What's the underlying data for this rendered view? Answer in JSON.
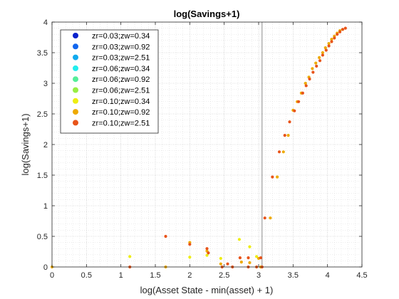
{
  "chart_data": {
    "type": "scatter",
    "title": "log(Savings+1)",
    "xlabel": "log(Asset State - min(asset) + 1)",
    "ylabel": "log(Savings+1)",
    "xlim": [
      0,
      4.5
    ],
    "ylim": [
      0,
      4
    ],
    "xticks": [
      0,
      0.5,
      1,
      1.5,
      2,
      2.5,
      3,
      3.5,
      4,
      4.5
    ],
    "xtick_labels": [
      "0",
      "0.5",
      "1",
      "1.5",
      "2",
      "2.5",
      "3",
      "3.5",
      "4",
      "4.5"
    ],
    "yticks": [
      0,
      0.5,
      1,
      1.5,
      2,
      2.5,
      3,
      3.5,
      4
    ],
    "ytick_labels": [
      "0",
      "0.5",
      "1",
      "1.5",
      "2",
      "2.5",
      "3",
      "3.5",
      "4"
    ],
    "grid": "on (major and minor, dotted)",
    "legend_position": "top-left",
    "vertical_line_x": 3.05,
    "series": [
      {
        "name": "zr=0.03;zw=0.34",
        "color": "#0a22cc",
        "points": []
      },
      {
        "name": "zr=0.03;zw=0.92",
        "color": "#1166ee",
        "points": []
      },
      {
        "name": "zr=0.03;zw=2.51",
        "color": "#11aaee",
        "points": []
      },
      {
        "name": "zr=0.06;zw=0.34",
        "color": "#22eeee",
        "points": []
      },
      {
        "name": "zr=0.06;zw=0.92",
        "color": "#55ee99",
        "points": []
      },
      {
        "name": "zr=0.06;zw=2.51",
        "color": "#99ee44",
        "points": []
      },
      {
        "name": "zr=0.10;zw=0.34",
        "color": "#eeee11",
        "points": [
          [
            1.13,
            0.17
          ],
          [
            2.72,
            0.45
          ],
          [
            2.87,
            0.33
          ],
          [
            2.97,
            0.17
          ],
          [
            2.45,
            0.14
          ],
          [
            2.25,
            0.19
          ],
          [
            2.0,
            0.16
          ]
        ]
      },
      {
        "name": "zr=0.10;zw=0.92",
        "color": "#eeaa00",
        "points": [
          [
            0.0,
            0.0
          ],
          [
            1.65,
            0.0
          ],
          [
            2.0,
            0.4
          ],
          [
            2.25,
            0.26
          ],
          [
            2.45,
            0.05
          ],
          [
            2.75,
            0.08
          ],
          [
            2.87,
            0.07
          ],
          [
            3.0,
            0.14
          ],
          [
            3.03,
            0.0
          ],
          [
            3.17,
            0.8
          ],
          [
            3.27,
            1.47
          ],
          [
            3.36,
            1.88
          ],
          [
            3.43,
            2.15
          ],
          [
            3.5,
            2.56
          ],
          [
            3.56,
            2.7
          ],
          [
            3.62,
            2.84
          ],
          [
            3.68,
            3.0
          ],
          [
            3.73,
            3.1
          ],
          [
            3.78,
            3.24
          ],
          [
            3.83,
            3.33
          ],
          [
            3.88,
            3.42
          ],
          [
            3.93,
            3.5
          ],
          [
            3.97,
            3.58
          ],
          [
            4.02,
            3.65
          ],
          [
            4.06,
            3.72
          ],
          [
            4.1,
            3.77
          ],
          [
            4.14,
            3.82
          ],
          [
            4.18,
            3.86
          ],
          [
            4.22,
            3.88
          ]
        ]
      },
      {
        "name": "zr=0.10;zw=2.51",
        "color": "#e8541a",
        "points": [
          [
            1.13,
            0.0
          ],
          [
            1.65,
            0.5
          ],
          [
            2.0,
            0.37
          ],
          [
            2.25,
            0.3
          ],
          [
            2.27,
            0.23
          ],
          [
            2.47,
            0.0
          ],
          [
            2.55,
            0.05
          ],
          [
            2.62,
            0.0
          ],
          [
            2.73,
            0.15
          ],
          [
            2.85,
            0.15
          ],
          [
            2.85,
            0.0
          ],
          [
            2.97,
            0.0
          ],
          [
            3.03,
            0.15
          ],
          [
            3.05,
            0.0
          ],
          [
            3.09,
            0.8
          ],
          [
            3.2,
            1.47
          ],
          [
            3.3,
            1.88
          ],
          [
            3.38,
            2.15
          ],
          [
            3.45,
            2.37
          ],
          [
            3.52,
            2.55
          ],
          [
            3.58,
            2.7
          ],
          [
            3.64,
            2.84
          ],
          [
            3.69,
            2.96
          ],
          [
            3.74,
            3.07
          ],
          [
            3.79,
            3.18
          ],
          [
            3.84,
            3.28
          ],
          [
            3.89,
            3.37
          ],
          [
            3.93,
            3.46
          ],
          [
            3.98,
            3.54
          ],
          [
            4.02,
            3.61
          ],
          [
            4.06,
            3.68
          ],
          [
            4.1,
            3.74
          ],
          [
            4.14,
            3.8
          ],
          [
            4.18,
            3.84
          ],
          [
            4.22,
            3.88
          ],
          [
            4.26,
            3.9
          ]
        ]
      }
    ]
  }
}
